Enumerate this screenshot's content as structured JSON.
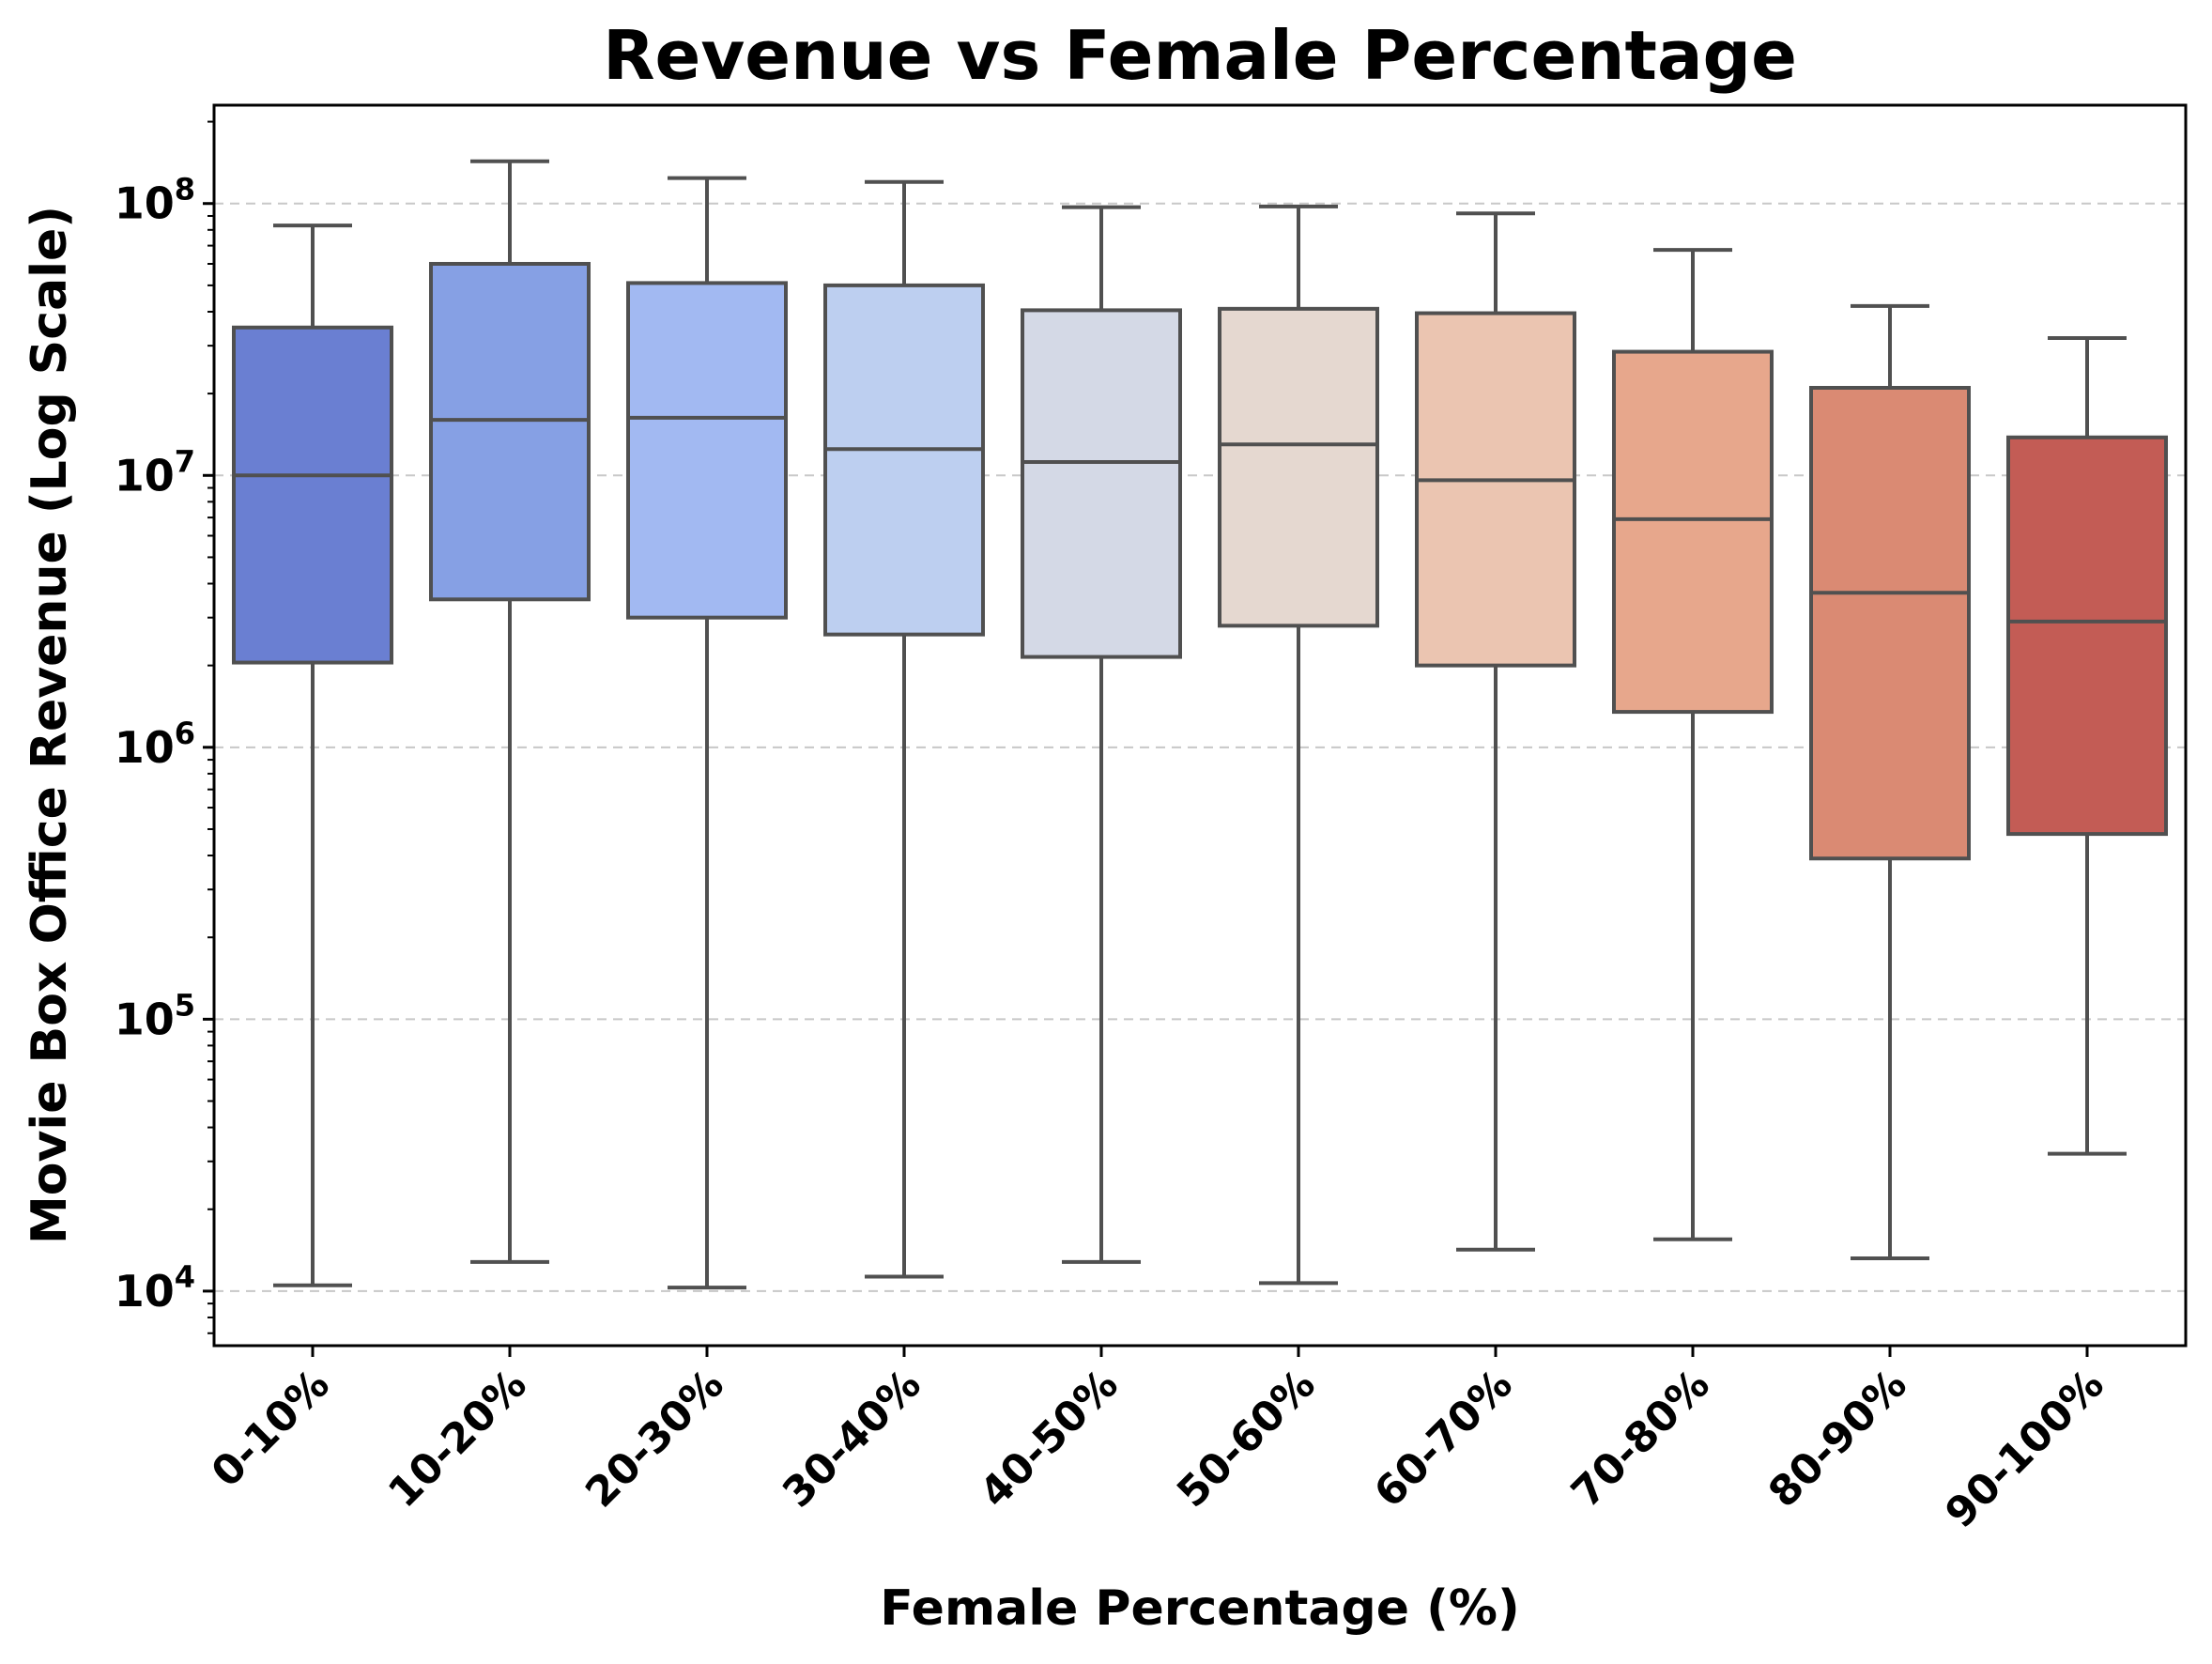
{
  "chart_data": {
    "type": "box",
    "title": "Revenue vs Female Percentage",
    "xlabel": "Female Percentage (%)",
    "ylabel": "Movie Box Office Revenue (Log Scale)",
    "y_scale": "log",
    "ylim": [
      6300,
      230000000
    ],
    "y_ticks": [
      {
        "value": 10000,
        "base": "10",
        "exp": "4"
      },
      {
        "value": 100000,
        "base": "10",
        "exp": "5"
      },
      {
        "value": 1000000,
        "base": "10",
        "exp": "6"
      },
      {
        "value": 10000000,
        "base": "10",
        "exp": "7"
      },
      {
        "value": 100000000,
        "base": "10",
        "exp": "8"
      }
    ],
    "grid": "horizontal dashed",
    "categories": [
      "0-10%",
      "10-20%",
      "20-30%",
      "30-40%",
      "40-50%",
      "50-60%",
      "60-70%",
      "70-80%",
      "80-90%",
      "90-100%"
    ],
    "boxes": [
      {
        "whisker_low": 10500,
        "q1": 2050000,
        "median": 10000000,
        "q3": 35000000,
        "whisker_high": 83000000,
        "color": "#6a7fd2"
      },
      {
        "whisker_low": 12800,
        "q1": 3500000,
        "median": 16000000,
        "q3": 60000000,
        "whisker_high": 143000000,
        "color": "#86a0e4"
      },
      {
        "whisker_low": 10300,
        "q1": 3000000,
        "median": 16300000,
        "q3": 51000000,
        "whisker_high": 124000000,
        "color": "#a2b9f2"
      },
      {
        "whisker_low": 11300,
        "q1": 2600000,
        "median": 12500000,
        "q3": 50000000,
        "whisker_high": 120000000,
        "color": "#bdcff0"
      },
      {
        "whisker_low": 12800,
        "q1": 2150000,
        "median": 11200000,
        "q3": 40500000,
        "whisker_high": 97000000,
        "color": "#d4d9e6"
      },
      {
        "whisker_low": 10700,
        "q1": 2800000,
        "median": 13000000,
        "q3": 41000000,
        "whisker_high": 97500000,
        "color": "#e5d8d0"
      },
      {
        "whisker_low": 14200,
        "q1": 2000000,
        "median": 9600000,
        "q3": 39500000,
        "whisker_high": 92000000,
        "color": "#ebc5b1"
      },
      {
        "whisker_low": 15500,
        "q1": 1350000,
        "median": 6900000,
        "q3": 28500000,
        "whisker_high": 67500000,
        "color": "#e7a78c"
      },
      {
        "whisker_low": 13200,
        "q1": 390000,
        "median": 3700000,
        "q3": 21000000,
        "whisker_high": 42000000,
        "color": "#da8a73"
      },
      {
        "whisker_low": 32000,
        "q1": 480000,
        "median": 2900000,
        "q3": 13800000,
        "whisker_high": 32000000,
        "color": "#c35c55"
      }
    ]
  }
}
